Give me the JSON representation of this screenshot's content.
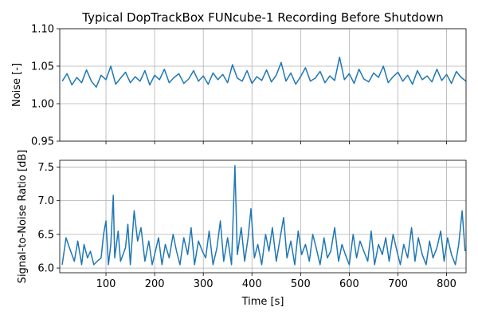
{
  "chart_data": [
    {
      "type": "line",
      "title": "Typical DopTrackBox FUNcube-1 Recording Before Shutdown",
      "xlabel": "",
      "ylabel": "Noise [-]",
      "xlim": [
        5,
        840
      ],
      "ylim": [
        0.95,
        1.1
      ],
      "grid": true,
      "yticks": [
        "0.95",
        "1.00",
        "1.05",
        "1.10"
      ],
      "ytick_values": [
        0.95,
        1.0,
        1.05,
        1.1
      ],
      "series_color": "#1f77b4",
      "series": [
        {
          "name": "",
          "x": [
            10,
            20,
            30,
            40,
            50,
            60,
            70,
            80,
            90,
            100,
            110,
            120,
            130,
            140,
            150,
            160,
            170,
            180,
            190,
            200,
            210,
            220,
            230,
            240,
            250,
            260,
            270,
            280,
            290,
            300,
            310,
            320,
            330,
            340,
            350,
            360,
            370,
            380,
            390,
            400,
            410,
            420,
            430,
            440,
            450,
            460,
            470,
            480,
            490,
            500,
            510,
            520,
            530,
            540,
            550,
            560,
            570,
            580,
            590,
            600,
            610,
            620,
            630,
            640,
            650,
            660,
            670,
            680,
            690,
            700,
            710,
            720,
            730,
            740,
            750,
            760,
            770,
            780,
            790,
            800,
            810,
            820,
            830,
            840
          ],
          "values": [
            1.03,
            1.04,
            1.025,
            1.035,
            1.028,
            1.045,
            1.03,
            1.022,
            1.038,
            1.032,
            1.05,
            1.026,
            1.034,
            1.042,
            1.028,
            1.036,
            1.03,
            1.044,
            1.025,
            1.038,
            1.032,
            1.046,
            1.028,
            1.035,
            1.04,
            1.027,
            1.033,
            1.044,
            1.03,
            1.037,
            1.026,
            1.041,
            1.032,
            1.039,
            1.028,
            1.052,
            1.034,
            1.03,
            1.044,
            1.027,
            1.036,
            1.031,
            1.045,
            1.029,
            1.038,
            1.055,
            1.03,
            1.041,
            1.026,
            1.036,
            1.048,
            1.03,
            1.034,
            1.043,
            1.028,
            1.037,
            1.031,
            1.062,
            1.032,
            1.04,
            1.027,
            1.046,
            1.033,
            1.029,
            1.041,
            1.035,
            1.05,
            1.028,
            1.036,
            1.042,
            1.03,
            1.038,
            1.026,
            1.044,
            1.032,
            1.037,
            1.029,
            1.046,
            1.031,
            1.039,
            1.027,
            1.043,
            1.035,
            1.03
          ]
        }
      ]
    },
    {
      "type": "line",
      "title": "",
      "xlabel": "Time [s]",
      "ylabel": "Signal-to-Noise Ratio [dB]",
      "xlim": [
        5,
        840
      ],
      "ylim": [
        5.93,
        7.6
      ],
      "grid": true,
      "xticks": [
        "100",
        "200",
        "300",
        "400",
        "500",
        "600",
        "700",
        "800"
      ],
      "xtick_values": [
        100,
        200,
        300,
        400,
        500,
        600,
        700,
        800
      ],
      "yticks": [
        "6.0",
        "6.5",
        "7.0",
        "7.5"
      ],
      "ytick_values": [
        6.0,
        6.5,
        7.0,
        7.5
      ],
      "series_color": "#1f77b4",
      "series": [
        {
          "name": "",
          "x": [
            10,
            18,
            25,
            35,
            42,
            50,
            55,
            62,
            68,
            75,
            82,
            90,
            95,
            100,
            105,
            110,
            115,
            118,
            125,
            130,
            140,
            145,
            150,
            158,
            165,
            172,
            180,
            188,
            195,
            200,
            208,
            215,
            222,
            230,
            238,
            245,
            252,
            260,
            268,
            275,
            282,
            290,
            298,
            305,
            312,
            320,
            328,
            335,
            342,
            350,
            358,
            365,
            370,
            378,
            385,
            392,
            398,
            405,
            412,
            420,
            428,
            435,
            442,
            450,
            458,
            465,
            472,
            480,
            488,
            495,
            502,
            510,
            518,
            525,
            532,
            540,
            548,
            555,
            562,
            570,
            578,
            585,
            592,
            600,
            608,
            615,
            622,
            630,
            638,
            645,
            652,
            660,
            668,
            675,
            682,
            690,
            698,
            705,
            712,
            720,
            728,
            735,
            742,
            750,
            758,
            765,
            772,
            780,
            788,
            795,
            802,
            810,
            818,
            825,
            832,
            838
          ],
          "values": [
            6.05,
            6.45,
            6.3,
            6.1,
            6.4,
            6.05,
            6.35,
            6.15,
            6.25,
            6.05,
            6.1,
            6.15,
            6.5,
            6.7,
            6.05,
            6.35,
            7.08,
            6.15,
            6.55,
            6.1,
            6.3,
            6.65,
            6.05,
            6.85,
            6.4,
            6.6,
            6.1,
            6.4,
            6.05,
            6.2,
            6.45,
            6.05,
            6.35,
            6.15,
            6.5,
            6.25,
            6.05,
            6.45,
            6.2,
            6.6,
            6.05,
            6.4,
            6.25,
            6.15,
            6.55,
            6.05,
            6.3,
            6.7,
            6.1,
            6.45,
            6.05,
            7.52,
            6.2,
            6.6,
            6.1,
            6.45,
            6.88,
            6.15,
            6.35,
            6.05,
            6.5,
            6.25,
            6.6,
            6.1,
            6.45,
            6.75,
            6.15,
            6.4,
            6.05,
            6.55,
            6.2,
            6.35,
            6.1,
            6.5,
            6.3,
            6.05,
            6.45,
            6.15,
            6.25,
            6.6,
            6.1,
            6.35,
            6.2,
            6.05,
            6.5,
            6.15,
            6.4,
            6.25,
            6.1,
            6.55,
            6.05,
            6.35,
            6.2,
            6.45,
            6.1,
            6.5,
            6.25,
            6.05,
            6.35,
            6.15,
            6.6,
            6.1,
            6.45,
            6.2,
            6.05,
            6.4,
            6.15,
            6.3,
            6.55,
            6.1,
            6.45,
            6.2,
            6.05,
            6.35,
            6.85,
            6.25
          ]
        }
      ]
    }
  ]
}
